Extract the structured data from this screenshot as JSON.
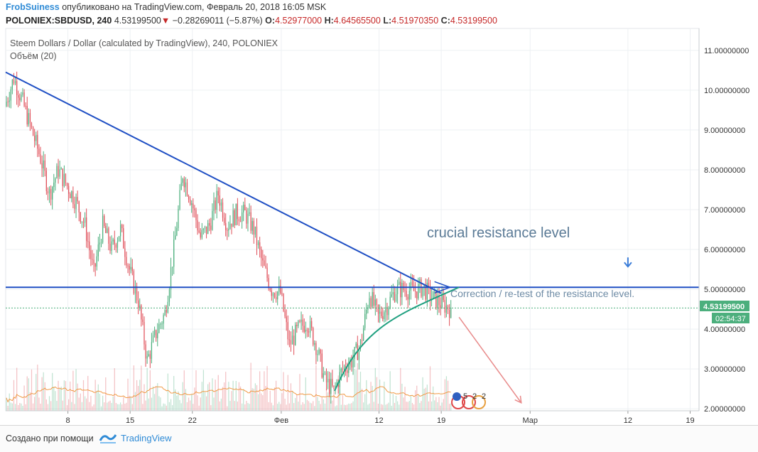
{
  "header": {
    "author": "FrobSuiness",
    "published_text": "опубликовано на TradingView.com, Февраль 20, 2018 16:05 MSK",
    "symbol": "POLONIEX:SBDUSD, 240",
    "last": "4.53199500",
    "change_arrow": "▼",
    "change": "−0.28269011 (−5.87%)",
    "o_label": "O:",
    "o_value": "4.52977000",
    "h_label": "H:",
    "h_value": "4.64565500",
    "l_label": "L:",
    "l_value": "4.51970350",
    "c_label": "C:",
    "c_value": "4.53199500"
  },
  "chart_data": {
    "type": "candlestick",
    "title": "Steem Dollars / Dollar (calculated by TradingView), 240, POLONIEX",
    "indicator_label": "Объём (20)",
    "y_ticks": [
      "11.00000000",
      "10.00000000",
      "9.00000000",
      "8.00000000",
      "7.00000000",
      "6.00000000",
      "5.00000000",
      "4.00000000",
      "3.00000000",
      "2.00000000"
    ],
    "y_tick_values": [
      11,
      10,
      9,
      8,
      7,
      6,
      5,
      4,
      3,
      2
    ],
    "ylim": [
      1.95,
      11.55
    ],
    "x_ticks": [
      "8",
      "15",
      "22",
      "Фев",
      "12",
      "19",
      "Мар",
      "12",
      "19"
    ],
    "x_tick_dates": [
      "2018-01-08",
      "2018-01-15",
      "2018-01-22",
      "2018-02-01",
      "2018-02-12",
      "2018-02-19",
      "2018-03-01",
      "2018-03-12",
      "2018-03-19"
    ],
    "xlim": [
      "2018-01-01",
      "2018-03-20"
    ],
    "price_path": [
      {
        "date": "2018-01-01",
        "price": 9.6
      },
      {
        "date": "2018-01-02",
        "price": 10.3
      },
      {
        "date": "2018-01-03",
        "price": 9.7
      },
      {
        "date": "2018-01-04",
        "price": 9.0
      },
      {
        "date": "2018-01-05",
        "price": 8.3
      },
      {
        "date": "2018-01-06",
        "price": 7.4
      },
      {
        "date": "2018-01-07",
        "price": 8.0
      },
      {
        "date": "2018-01-08",
        "price": 7.6
      },
      {
        "date": "2018-01-09",
        "price": 7.2
      },
      {
        "date": "2018-01-10",
        "price": 6.6
      },
      {
        "date": "2018-01-11",
        "price": 5.4
      },
      {
        "date": "2018-01-12",
        "price": 6.6
      },
      {
        "date": "2018-01-13",
        "price": 6.0
      },
      {
        "date": "2018-01-14",
        "price": 6.5
      },
      {
        "date": "2018-01-15",
        "price": 5.5
      },
      {
        "date": "2018-01-16",
        "price": 4.7
      },
      {
        "date": "2018-01-17",
        "price": 3.2
      },
      {
        "date": "2018-01-18",
        "price": 3.9
      },
      {
        "date": "2018-01-19",
        "price": 4.4
      },
      {
        "date": "2018-01-20",
        "price": 6.0
      },
      {
        "date": "2018-01-21",
        "price": 7.9
      },
      {
        "date": "2018-01-22",
        "price": 7.2
      },
      {
        "date": "2018-01-23",
        "price": 6.3
      },
      {
        "date": "2018-01-24",
        "price": 6.6
      },
      {
        "date": "2018-01-25",
        "price": 7.4
      },
      {
        "date": "2018-01-26",
        "price": 6.6
      },
      {
        "date": "2018-01-27",
        "price": 6.9
      },
      {
        "date": "2018-01-28",
        "price": 6.9
      },
      {
        "date": "2018-01-29",
        "price": 6.5
      },
      {
        "date": "2018-01-30",
        "price": 5.6
      },
      {
        "date": "2018-01-31",
        "price": 5.0
      },
      {
        "date": "2018-02-01",
        "price": 4.9
      },
      {
        "date": "2018-02-02",
        "price": 3.6
      },
      {
        "date": "2018-02-03",
        "price": 4.0
      },
      {
        "date": "2018-02-04",
        "price": 4.2
      },
      {
        "date": "2018-02-05",
        "price": 3.6
      },
      {
        "date": "2018-02-06",
        "price": 2.7
      },
      {
        "date": "2018-02-07",
        "price": 2.45
      },
      {
        "date": "2018-02-08",
        "price": 3.0
      },
      {
        "date": "2018-02-09",
        "price": 3.2
      },
      {
        "date": "2018-02-10",
        "price": 3.6
      },
      {
        "date": "2018-02-11",
        "price": 4.9
      },
      {
        "date": "2018-02-12",
        "price": 4.3
      },
      {
        "date": "2018-02-13",
        "price": 4.6
      },
      {
        "date": "2018-02-14",
        "price": 5.0
      },
      {
        "date": "2018-02-15",
        "price": 5.0
      },
      {
        "date": "2018-02-16",
        "price": 4.95
      },
      {
        "date": "2018-02-17",
        "price": 5.05
      },
      {
        "date": "2018-02-18",
        "price": 4.8
      },
      {
        "date": "2018-02-19",
        "price": 4.65
      },
      {
        "date": "2018-02-20",
        "price": 4.53
      }
    ],
    "series": [
      {
        "name": "Объём (20)",
        "type": "volume"
      }
    ],
    "annotations": {
      "resistance_label": "crucial resistance level",
      "correction_label": "Correction / re-test of the resistance level.",
      "resistance_price": 5.05,
      "trendline": [
        {
          "date": "2018-01-01",
          "price": 10.45
        },
        {
          "date": "2018-02-19",
          "price": 4.9
        }
      ],
      "retest_arrow": [
        {
          "date": "2018-02-21",
          "price": 4.3
        },
        {
          "date": "2018-02-28",
          "price": 2.15
        }
      ]
    },
    "last_price_label": "4.53199500",
    "countdown_label": "02:54:37",
    "event_numbers": [
      "5",
      "2",
      "2"
    ],
    "colors": {
      "up": "#4caf7d",
      "down": "#e0505a",
      "trendline": "#1f4fc4",
      "resistance": "#1f4fc4",
      "curve": "#20a080",
      "arrow": "#e88a8a",
      "price_tag": "#4caf7d",
      "volume_ma": "#f09a46"
    },
    "grid": true
  },
  "footer": {
    "created_with": "Создано при помощи",
    "brand": "TradingView"
  }
}
